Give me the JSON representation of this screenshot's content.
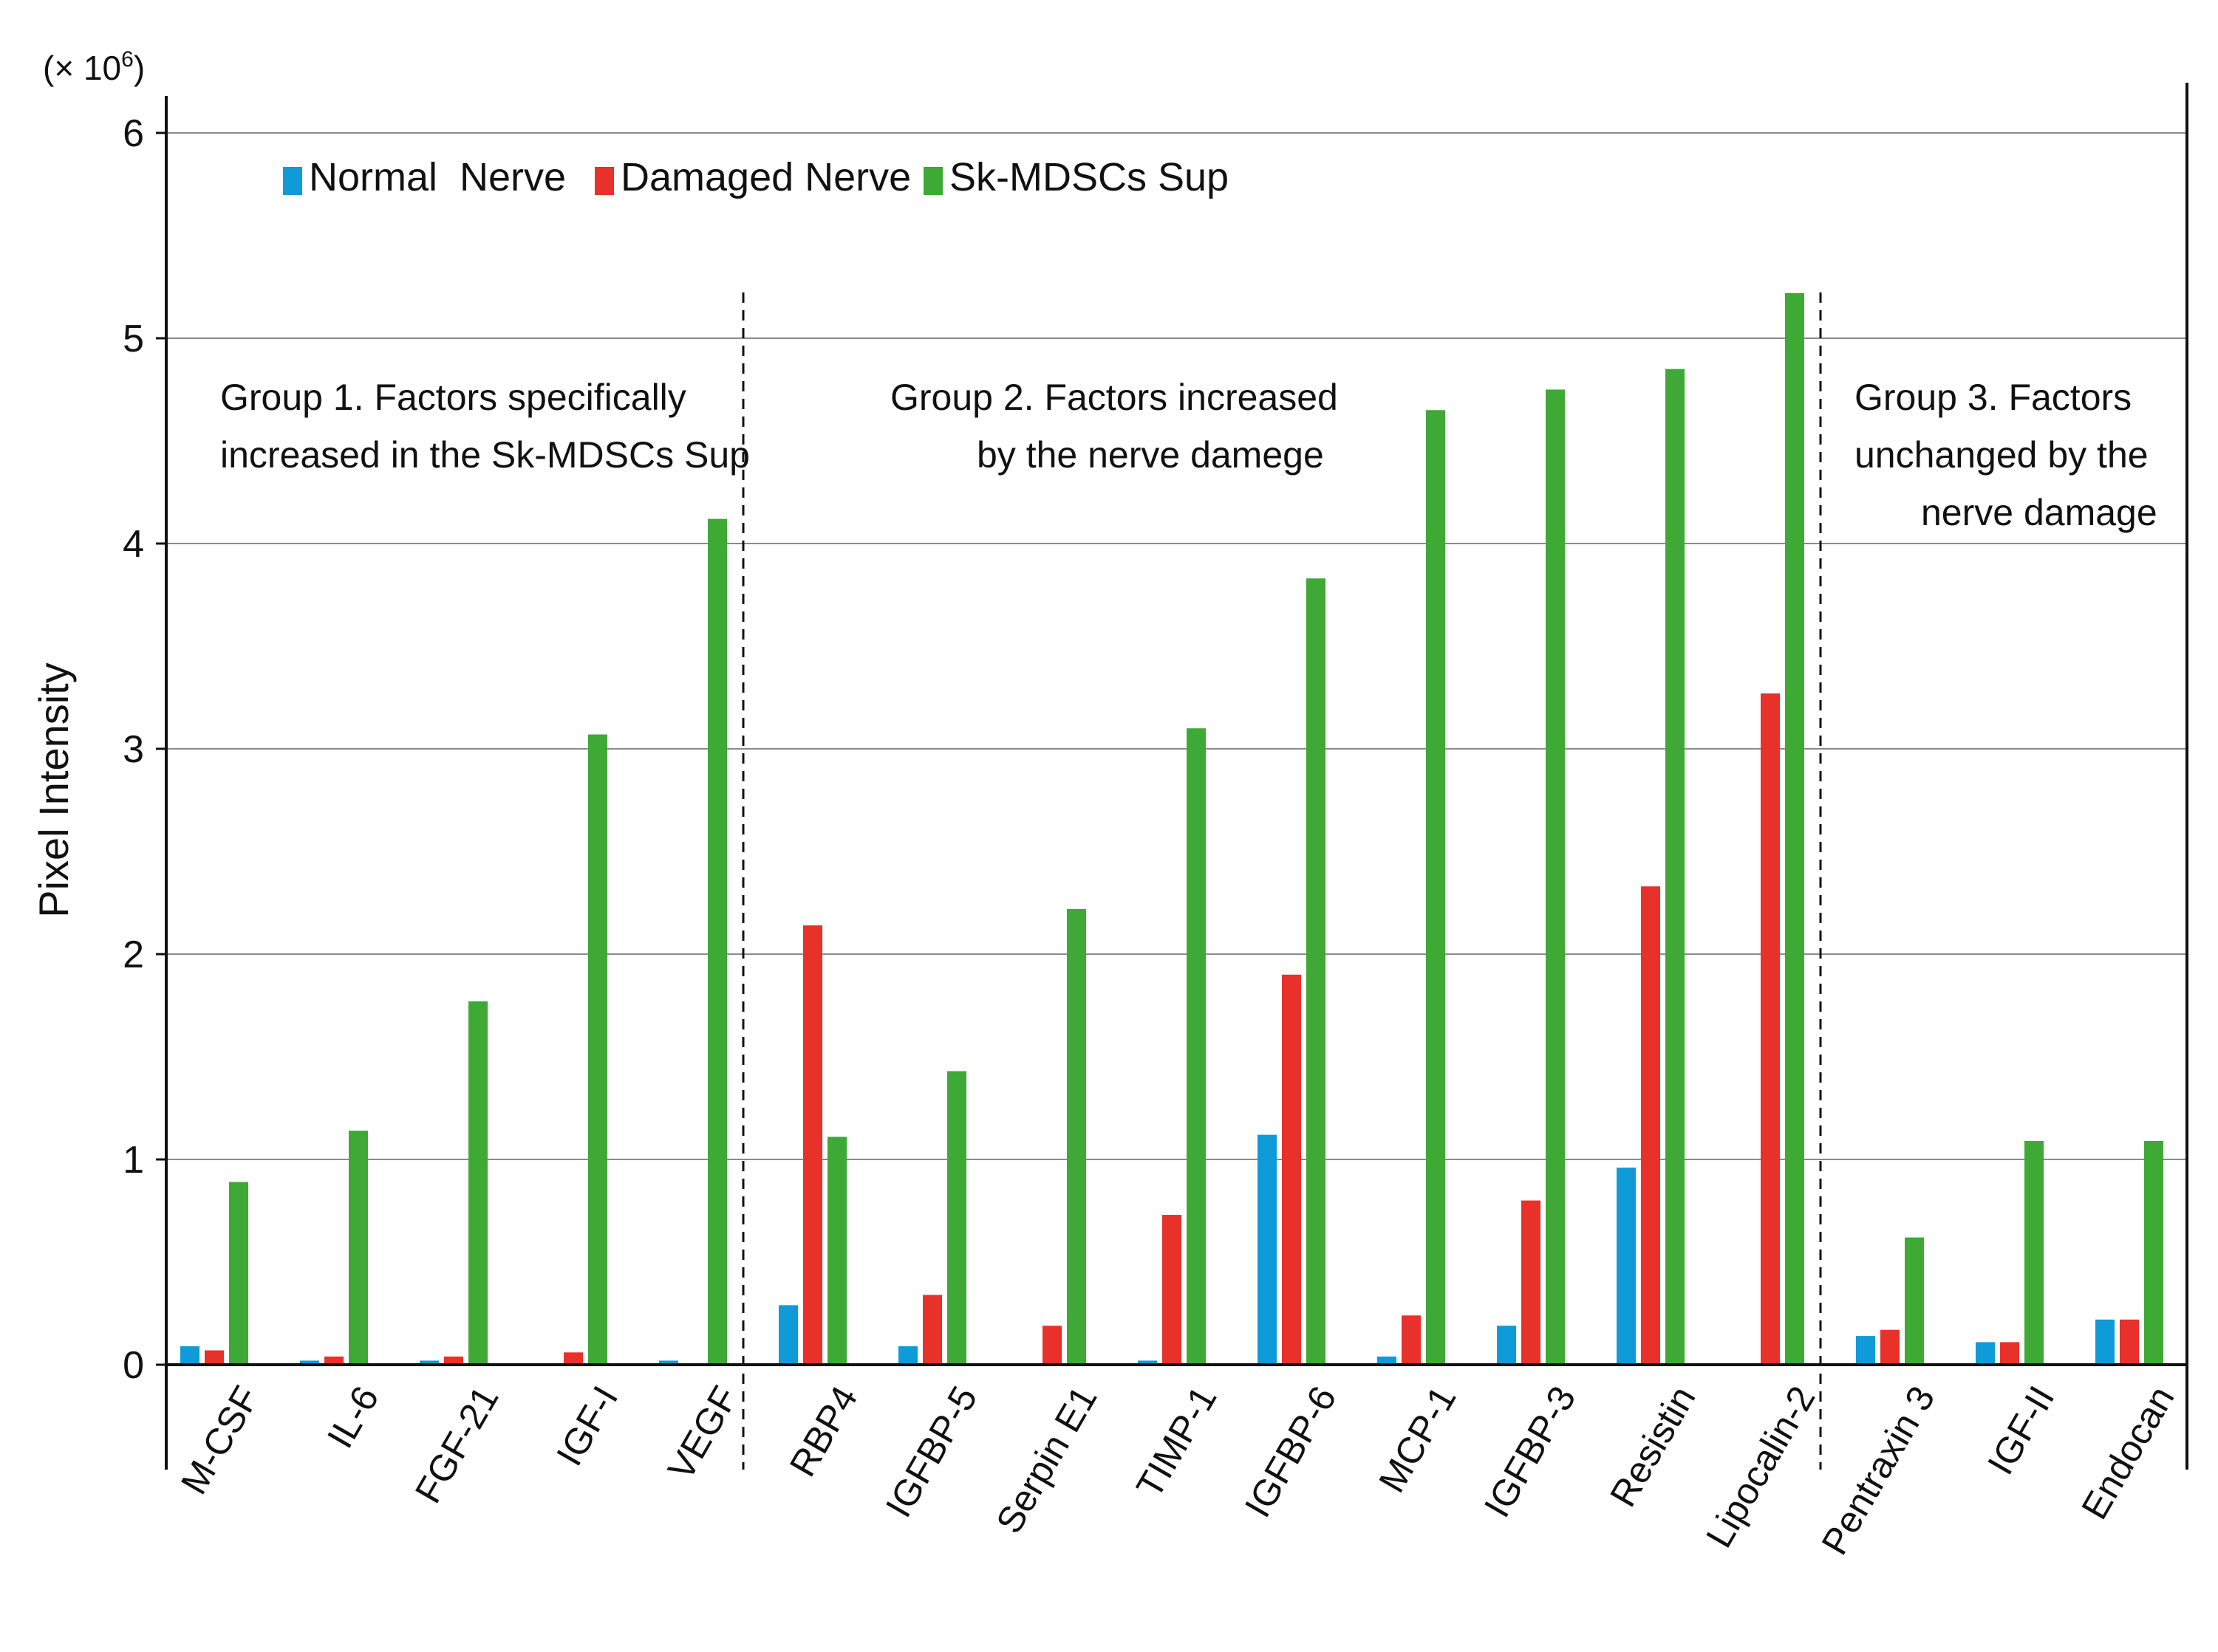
{
  "chart_data": {
    "type": "bar",
    "title": "",
    "xlabel": "",
    "ylabel": "Pixel Intensity",
    "y_unit_base": "(× 10",
    "y_unit_exp": "6",
    "y_unit_close": ")",
    "ylim": [
      0,
      6
    ],
    "yticks": [
      0,
      1,
      2,
      3,
      4,
      5,
      6
    ],
    "grid": true,
    "legend_position": "top-left",
    "categories": [
      "M-CSF",
      "IL-6",
      "FGF-21",
      "IGF-I",
      "VEGF",
      "RBP4",
      "IGFBP-5",
      "Serpin E1",
      "TIMP-1",
      "IGFBP-6",
      "MCP-1",
      "IGFBP-3",
      "Resistin",
      "Lipocalin-2",
      "Pentraxin 3",
      "IGF-II",
      "Endocan"
    ],
    "series": [
      {
        "name": "Normal  Nerve",
        "color": "#0f9bd7",
        "values": [
          0.09,
          0.02,
          0.02,
          0.0,
          0.02,
          0.29,
          0.09,
          0.0,
          0.02,
          1.12,
          0.04,
          0.19,
          0.96,
          0.0,
          0.14,
          0.11,
          0.22
        ]
      },
      {
        "name": "Damaged Nerve",
        "color": "#e8312a",
        "values": [
          0.07,
          0.04,
          0.04,
          0.06,
          0.0,
          2.14,
          0.34,
          0.19,
          0.73,
          1.9,
          0.24,
          0.8,
          2.33,
          3.27,
          0.17,
          0.11,
          0.22
        ]
      },
      {
        "name": "Sk-MDSCs Sup",
        "color": "#3ea935",
        "values": [
          0.89,
          1.14,
          1.77,
          3.07,
          4.12,
          1.11,
          1.43,
          2.22,
          3.1,
          3.83,
          4.65,
          4.75,
          4.85,
          5.22,
          0.62,
          1.09,
          1.09
        ]
      }
    ],
    "groups": [
      {
        "lines": [
          "Group 1. Factors specifically",
          "increased in the Sk-MDSCs Sup"
        ],
        "start": 0,
        "end": 4
      },
      {
        "lines": [
          "Group 2.  Factors increased",
          "by the nerve damege"
        ],
        "start": 5,
        "end": 13
      },
      {
        "lines": [
          "Group 3.  Factors",
          "unchanged by the",
          "nerve damage"
        ],
        "start": 14,
        "end": 16
      }
    ]
  }
}
